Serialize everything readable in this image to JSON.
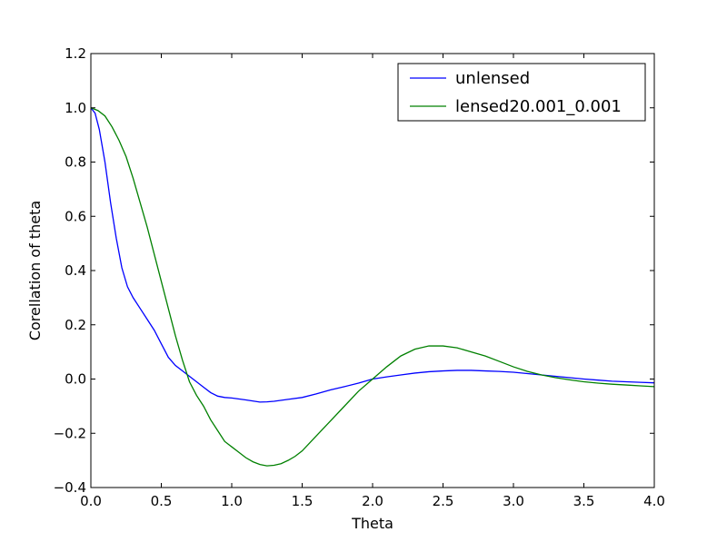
{
  "chart_data": {
    "type": "line",
    "title": "",
    "xlabel": "Theta",
    "ylabel": "Corellation of theta",
    "xlim": [
      0.0,
      4.0
    ],
    "ylim": [
      -0.4,
      1.2
    ],
    "xticks": [
      0.0,
      0.5,
      1.0,
      1.5,
      2.0,
      2.5,
      3.0,
      3.5,
      4.0
    ],
    "xtick_labels": [
      "0.0",
      "0.5",
      "1.0",
      "1.5",
      "2.0",
      "2.5",
      "3.0",
      "3.5",
      "4.0"
    ],
    "yticks": [
      -0.4,
      -0.2,
      0.0,
      0.2,
      0.4,
      0.6,
      0.8,
      1.0,
      1.2
    ],
    "ytick_labels": [
      "−0.4",
      "−0.2",
      "0.0",
      "0.2",
      "0.4",
      "0.6",
      "0.8",
      "1.0",
      "1.2"
    ],
    "grid": false,
    "legend_position": "top-right",
    "series": [
      {
        "name": "unlensed",
        "color": "#0000ff",
        "x": [
          0.0,
          0.03,
          0.06,
          0.1,
          0.14,
          0.18,
          0.22,
          0.26,
          0.3,
          0.35,
          0.4,
          0.45,
          0.5,
          0.55,
          0.6,
          0.65,
          0.7,
          0.75,
          0.8,
          0.85,
          0.9,
          0.95,
          1.0,
          1.1,
          1.2,
          1.25,
          1.3,
          1.4,
          1.5,
          1.6,
          1.7,
          1.8,
          1.9,
          2.0,
          2.1,
          2.2,
          2.3,
          2.4,
          2.5,
          2.6,
          2.7,
          2.8,
          2.9,
          3.0,
          3.1,
          3.2,
          3.3,
          3.4,
          3.5,
          3.6,
          3.7,
          3.8,
          3.9,
          4.0
        ],
        "y": [
          1.0,
          0.98,
          0.92,
          0.8,
          0.65,
          0.52,
          0.41,
          0.34,
          0.3,
          0.26,
          0.22,
          0.18,
          0.13,
          0.08,
          0.05,
          0.03,
          0.01,
          -0.01,
          -0.03,
          -0.05,
          -0.063,
          -0.068,
          -0.07,
          -0.077,
          -0.085,
          -0.084,
          -0.082,
          -0.075,
          -0.068,
          -0.055,
          -0.04,
          -0.028,
          -0.015,
          0.0,
          0.008,
          0.015,
          0.022,
          0.027,
          0.03,
          0.032,
          0.032,
          0.03,
          0.028,
          0.025,
          0.02,
          0.015,
          0.01,
          0.005,
          0.0,
          -0.004,
          -0.008,
          -0.01,
          -0.012,
          -0.014
        ]
      },
      {
        "name": "lensed20.001_0.001",
        "color": "#008000",
        "x": [
          0.0,
          0.05,
          0.1,
          0.15,
          0.2,
          0.25,
          0.3,
          0.35,
          0.4,
          0.45,
          0.5,
          0.55,
          0.6,
          0.65,
          0.7,
          0.75,
          0.8,
          0.85,
          0.9,
          0.95,
          1.0,
          1.05,
          1.1,
          1.15,
          1.2,
          1.25,
          1.3,
          1.35,
          1.4,
          1.45,
          1.5,
          1.6,
          1.7,
          1.8,
          1.9,
          2.0,
          2.1,
          2.2,
          2.3,
          2.4,
          2.5,
          2.6,
          2.7,
          2.8,
          2.9,
          3.0,
          3.1,
          3.2,
          3.3,
          3.4,
          3.5,
          3.6,
          3.7,
          3.8,
          3.9,
          4.0
        ],
        "y": [
          1.0,
          0.99,
          0.97,
          0.93,
          0.88,
          0.82,
          0.74,
          0.65,
          0.56,
          0.46,
          0.36,
          0.26,
          0.16,
          0.07,
          -0.01,
          -0.06,
          -0.1,
          -0.15,
          -0.19,
          -0.23,
          -0.25,
          -0.27,
          -0.29,
          -0.305,
          -0.315,
          -0.32,
          -0.318,
          -0.312,
          -0.3,
          -0.285,
          -0.265,
          -0.21,
          -0.155,
          -0.1,
          -0.045,
          0.0,
          0.045,
          0.085,
          0.11,
          0.122,
          0.122,
          0.115,
          0.1,
          0.085,
          0.065,
          0.045,
          0.028,
          0.015,
          0.005,
          -0.003,
          -0.01,
          -0.015,
          -0.019,
          -0.022,
          -0.025,
          -0.028
        ]
      }
    ]
  }
}
